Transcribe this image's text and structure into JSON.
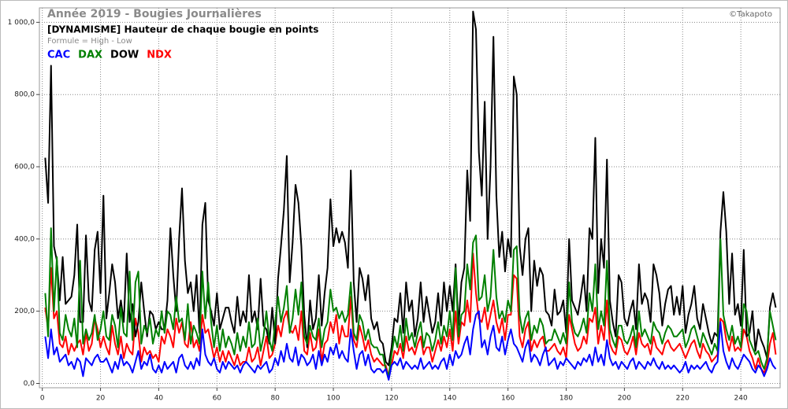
{
  "chart_data": {
    "type": "line",
    "title": "Année 2019 - Bougies Journalières",
    "subtitle": "[DYNAMISME] Hauteur de chaque bougie en points",
    "note": "Formule = High - Low",
    "credit": "©Takapoto",
    "grid": true,
    "xlim": [
      -1,
      253.5
    ],
    "ylim": [
      -12,
      1040
    ],
    "xticks": [
      0,
      20,
      40,
      60,
      80,
      100,
      120,
      140,
      160,
      180,
      200,
      220,
      240
    ],
    "yticks": [
      {
        "value": 0,
        "label": "0,0"
      },
      {
        "value": 200,
        "label": "200,0"
      },
      {
        "value": 400,
        "label": "400,0"
      },
      {
        "value": 600,
        "label": "600,0"
      },
      {
        "value": 800,
        "label": "800,0"
      },
      {
        "value": 1000,
        "label": "1 000,0"
      }
    ],
    "x": [
      1,
      2,
      3,
      4,
      5,
      6,
      7,
      8,
      9,
      10,
      11,
      12,
      13,
      14,
      15,
      16,
      17,
      18,
      19,
      20,
      21,
      22,
      23,
      24,
      25,
      26,
      27,
      28,
      29,
      30,
      31,
      32,
      33,
      34,
      35,
      36,
      37,
      38,
      39,
      40,
      41,
      42,
      43,
      44,
      45,
      46,
      47,
      48,
      49,
      50,
      51,
      52,
      53,
      54,
      55,
      56,
      57,
      58,
      59,
      60,
      61,
      62,
      63,
      64,
      65,
      66,
      67,
      68,
      69,
      70,
      71,
      72,
      73,
      74,
      75,
      76,
      77,
      78,
      79,
      80,
      81,
      82,
      83,
      84,
      85,
      86,
      87,
      88,
      89,
      90,
      91,
      92,
      93,
      94,
      95,
      96,
      97,
      98,
      99,
      100,
      101,
      102,
      103,
      104,
      105,
      106,
      107,
      108,
      109,
      110,
      111,
      112,
      113,
      114,
      115,
      116,
      117,
      118,
      119,
      120,
      121,
      122,
      123,
      124,
      125,
      126,
      127,
      128,
      129,
      130,
      131,
      132,
      133,
      134,
      135,
      136,
      137,
      138,
      139,
      140,
      141,
      142,
      143,
      144,
      145,
      146,
      147,
      148,
      149,
      150,
      151,
      152,
      153,
      154,
      155,
      156,
      157,
      158,
      159,
      160,
      161,
      162,
      163,
      164,
      165,
      166,
      167,
      168,
      169,
      170,
      171,
      172,
      173,
      174,
      175,
      176,
      177,
      178,
      179,
      180,
      181,
      182,
      183,
      184,
      185,
      186,
      187,
      188,
      189,
      190,
      191,
      192,
      193,
      194,
      195,
      196,
      197,
      198,
      199,
      200,
      201,
      202,
      203,
      204,
      205,
      206,
      207,
      208,
      209,
      210,
      211,
      212,
      213,
      214,
      215,
      216,
      217,
      218,
      219,
      220,
      221,
      222,
      223,
      224,
      225,
      226,
      227,
      228,
      229,
      230,
      231,
      232,
      233,
      234,
      235,
      236,
      237,
      238,
      239,
      240,
      241,
      242,
      243,
      244,
      245,
      246,
      247,
      248,
      249,
      250,
      251,
      252
    ],
    "series": [
      {
        "name": "CAC",
        "color": "#0000ff",
        "values": [
          130,
          70,
          150,
          80,
          100,
          60,
          70,
          80,
          50,
          60,
          40,
          70,
          60,
          20,
          70,
          60,
          50,
          70,
          80,
          60,
          60,
          70,
          50,
          30,
          60,
          40,
          80,
          50,
          60,
          50,
          30,
          60,
          90,
          40,
          60,
          50,
          80,
          40,
          30,
          50,
          30,
          60,
          40,
          50,
          60,
          30,
          70,
          80,
          50,
          40,
          60,
          40,
          70,
          50,
          150,
          80,
          60,
          50,
          70,
          40,
          30,
          60,
          40,
          60,
          50,
          40,
          50,
          30,
          50,
          60,
          50,
          40,
          30,
          50,
          40,
          50,
          60,
          30,
          40,
          70,
          50,
          90,
          60,
          110,
          70,
          60,
          100,
          50,
          80,
          70,
          50,
          60,
          80,
          40,
          90,
          50,
          80,
          60,
          100,
          80,
          110,
          70,
          90,
          70,
          60,
          150,
          90,
          40,
          80,
          90,
          50,
          80,
          40,
          30,
          40,
          40,
          30,
          40,
          10,
          50,
          60,
          50,
          70,
          40,
          60,
          50,
          40,
          50,
          40,
          70,
          40,
          50,
          60,
          40,
          50,
          40,
          60,
          70,
          40,
          80,
          50,
          90,
          70,
          80,
          110,
          130,
          80,
          150,
          190,
          200,
          100,
          120,
          80,
          130,
          160,
          100,
          90,
          130,
          80,
          120,
          150,
          110,
          100,
          80,
          60,
          100,
          120,
          60,
          80,
          70,
          50,
          80,
          100,
          50,
          60,
          70,
          40,
          60,
          50,
          70,
          60,
          50,
          40,
          60,
          50,
          70,
          60,
          80,
          50,
          100,
          60,
          80,
          50,
          120,
          70,
          50,
          60,
          40,
          60,
          50,
          40,
          60,
          70,
          40,
          60,
          50,
          40,
          60,
          50,
          70,
          50,
          40,
          60,
          40,
          50,
          40,
          50,
          40,
          30,
          40,
          60,
          30,
          50,
          40,
          50,
          40,
          50,
          60,
          40,
          30,
          50,
          60,
          170,
          90,
          60,
          40,
          70,
          50,
          40,
          60,
          80,
          70,
          60,
          40,
          30,
          50,
          40,
          20,
          40,
          70,
          50,
          40
        ]
      },
      {
        "name": "DAX",
        "color": "#008000",
        "values": [
          250,
          130,
          430,
          200,
          350,
          140,
          120,
          190,
          150,
          130,
          180,
          100,
          340,
          110,
          150,
          120,
          140,
          190,
          120,
          150,
          200,
          130,
          120,
          190,
          160,
          100,
          210,
          140,
          130,
          310,
          120,
          280,
          310,
          110,
          160,
          140,
          180,
          110,
          150,
          130,
          200,
          140,
          200,
          190,
          150,
          240,
          170,
          180,
          120,
          220,
          110,
          160,
          140,
          110,
          310,
          180,
          280,
          170,
          100,
          160,
          90,
          150,
          100,
          130,
          110,
          80,
          140,
          90,
          130,
          100,
          170,
          100,
          110,
          180,
          90,
          130,
          200,
          120,
          90,
          170,
          240,
          170,
          210,
          270,
          140,
          180,
          260,
          190,
          280,
          130,
          110,
          160,
          130,
          120,
          180,
          100,
          150,
          170,
          260,
          200,
          210,
          180,
          200,
          170,
          190,
          280,
          140,
          120,
          190,
          170,
          120,
          150,
          110,
          100,
          100,
          80,
          80,
          40,
          20,
          80,
          130,
          100,
          160,
          90,
          180,
          120,
          140,
          100,
          140,
          170,
          100,
          140,
          130,
          90,
          120,
          170,
          110,
          160,
          130,
          200,
          120,
          320,
          130,
          190,
          200,
          330,
          260,
          390,
          410,
          230,
          240,
          300,
          200,
          240,
          370,
          240,
          180,
          200,
          170,
          230,
          200,
          370,
          380,
          190,
          140,
          180,
          200,
          120,
          160,
          140,
          180,
          160,
          110,
          120,
          120,
          150,
          130,
          110,
          140,
          110,
          280,
          170,
          140,
          130,
          150,
          180,
          140,
          250,
          200,
          330,
          150,
          200,
          160,
          340,
          150,
          120,
          100,
          160,
          160,
          120,
          110,
          130,
          160,
          100,
          200,
          130,
          150,
          130,
          110,
          170,
          150,
          140,
          110,
          140,
          160,
          150,
          130,
          130,
          140,
          150,
          100,
          120,
          150,
          160,
          130,
          100,
          140,
          120,
          100,
          80,
          110,
          90,
          400,
          190,
          150,
          120,
          160,
          110,
          130,
          100,
          220,
          200,
          120,
          100,
          80,
          90,
          60,
          40,
          70,
          200,
          160,
          120
        ]
      },
      {
        "name": "DOW",
        "color": "#000000",
        "values": [
          625,
          500,
          880,
          380,
          340,
          230,
          350,
          220,
          230,
          240,
          300,
          440,
          170,
          170,
          410,
          230,
          200,
          370,
          420,
          250,
          520,
          180,
          250,
          330,
          280,
          180,
          230,
          170,
          360,
          170,
          220,
          130,
          170,
          280,
          200,
          130,
          200,
          190,
          150,
          170,
          150,
          150,
          230,
          430,
          300,
          200,
          400,
          540,
          340,
          250,
          280,
          200,
          300,
          140,
          440,
          500,
          230,
          200,
          160,
          250,
          150,
          180,
          210,
          210,
          170,
          140,
          240,
          160,
          200,
          170,
          300,
          170,
          200,
          150,
          290,
          160,
          150,
          110,
          210,
          110,
          290,
          380,
          480,
          630,
          280,
          390,
          550,
          500,
          380,
          190,
          100,
          230,
          150,
          180,
          300,
          160,
          250,
          320,
          510,
          380,
          430,
          390,
          420,
          390,
          320,
          590,
          280,
          170,
          320,
          290,
          230,
          300,
          180,
          150,
          170,
          120,
          110,
          60,
          50,
          100,
          180,
          170,
          250,
          140,
          280,
          200,
          230,
          130,
          180,
          280,
          170,
          240,
          190,
          140,
          170,
          250,
          160,
          280,
          200,
          270,
          200,
          330,
          160,
          280,
          320,
          590,
          450,
          1030,
          980,
          640,
          520,
          780,
          400,
          600,
          960,
          520,
          350,
          420,
          310,
          400,
          350,
          850,
          800,
          380,
          300,
          400,
          430,
          200,
          340,
          270,
          320,
          300,
          200,
          190,
          160,
          260,
          190,
          200,
          230,
          140,
          400,
          230,
          210,
          190,
          240,
          300,
          200,
          430,
          400,
          680,
          250,
          400,
          320,
          620,
          230,
          170,
          130,
          300,
          280,
          180,
          160,
          200,
          230,
          150,
          330,
          220,
          250,
          230,
          170,
          330,
          300,
          250,
          160,
          220,
          260,
          270,
          190,
          240,
          190,
          270,
          140,
          190,
          220,
          270,
          180,
          150,
          220,
          180,
          140,
          110,
          140,
          130,
          420,
          530,
          420,
          220,
          360,
          190,
          220,
          160,
          370,
          130,
          140,
          200,
          90,
          150,
          120,
          100,
          70,
          210,
          250,
          210
        ]
      },
      {
        "name": "NDX",
        "color": "#ff0000",
        "values": [
          210,
          150,
          320,
          180,
          200,
          110,
          100,
          130,
          80,
          110,
          90,
          110,
          120,
          80,
          140,
          90,
          110,
          180,
          150,
          100,
          130,
          100,
          80,
          160,
          110,
          80,
          130,
          70,
          110,
          90,
          80,
          180,
          140,
          60,
          100,
          80,
          90,
          70,
          80,
          60,
          130,
          110,
          150,
          130,
          100,
          180,
          140,
          170,
          110,
          100,
          170,
          100,
          120,
          90,
          190,
          140,
          150,
          110,
          70,
          100,
          60,
          90,
          60,
          90,
          70,
          50,
          80,
          50,
          60,
          60,
          100,
          60,
          70,
          100,
          50,
          90,
          130,
          70,
          80,
          110,
          160,
          130,
          180,
          200,
          150,
          140,
          160,
          120,
          200,
          90,
          80,
          140,
          90,
          100,
          150,
          60,
          110,
          120,
          170,
          140,
          190,
          110,
          160,
          130,
          130,
          240,
          120,
          100,
          160,
          130,
          90,
          120,
          80,
          60,
          70,
          60,
          50,
          50,
          20,
          50,
          90,
          80,
          110,
          70,
          130,
          90,
          100,
          80,
          110,
          130,
          80,
          100,
          100,
          60,
          90,
          120,
          90,
          130,
          100,
          150,
          90,
          200,
          110,
          170,
          160,
          230,
          170,
          360,
          250,
          180,
          170,
          210,
          150,
          190,
          230,
          170,
          140,
          180,
          120,
          190,
          190,
          300,
          290,
          130,
          100,
          150,
          170,
          90,
          120,
          100,
          120,
          130,
          90,
          90,
          100,
          110,
          90,
          80,
          100,
          70,
          190,
          150,
          110,
          90,
          100,
          130,
          110,
          180,
          170,
          210,
          110,
          160,
          120,
          230,
          110,
          90,
          80,
          130,
          120,
          90,
          80,
          100,
          130,
          80,
          140,
          110,
          100,
          110,
          80,
          130,
          100,
          90,
          80,
          110,
          120,
          100,
          90,
          100,
          110,
          90,
          70,
          90,
          110,
          120,
          90,
          70,
          110,
          90,
          80,
          60,
          70,
          80,
          180,
          170,
          120,
          90,
          130,
          90,
          100,
          90,
          150,
          130,
          90,
          70,
          40,
          70,
          40,
          30,
          50,
          110,
          140,
          80
        ]
      }
    ]
  }
}
